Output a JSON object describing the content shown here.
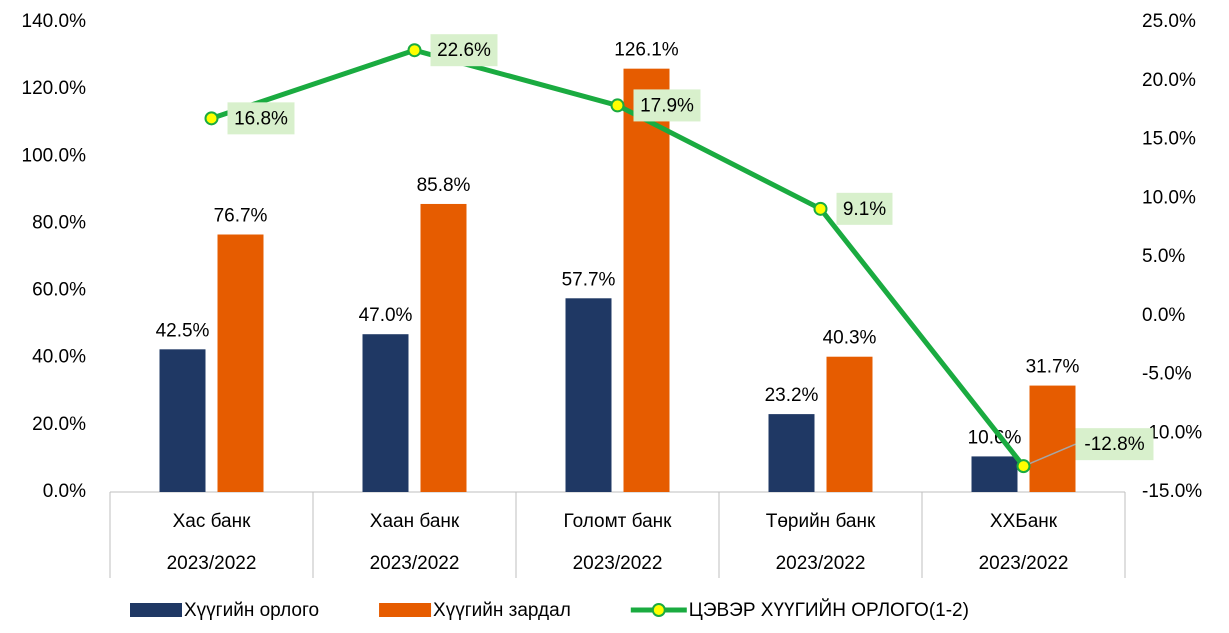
{
  "chart_data": {
    "type": "bar_line",
    "categories": [
      "Хас банк",
      "Хаан банк",
      "Голомт банк",
      "Төрийн банк",
      "ХХБанк"
    ],
    "period_labels": [
      "2023/2022",
      "2023/2022",
      "2023/2022",
      "2023/2022",
      "2023/2022"
    ],
    "series": [
      {
        "name": "Хүүгийн орлого",
        "type": "bar",
        "color": "#1f3864",
        "values": [
          42.5,
          47.0,
          57.7,
          23.2,
          10.6
        ],
        "value_labels": [
          "42.5%",
          "47.0%",
          "57.7%",
          "23.2%",
          "10.6%"
        ]
      },
      {
        "name": "Хүүгийн зардал",
        "type": "bar",
        "color": "#e65c00",
        "values": [
          76.7,
          85.8,
          126.1,
          40.3,
          31.7
        ],
        "value_labels": [
          "76.7%",
          "85.8%",
          "126.1%",
          "40.3%",
          "31.7%"
        ]
      },
      {
        "name": "ЦЭВЭР ХҮҮГИЙН ОРЛОГО(1-2)",
        "type": "line",
        "axis": "y2",
        "color": "#1aab40",
        "marker_color": "#ffff00",
        "label_background": "#d8f0cc",
        "values": [
          16.8,
          22.6,
          17.9,
          9.1,
          -12.8
        ],
        "value_labels": [
          "16.8%",
          "22.6%",
          "17.9%",
          "9.1%",
          "-12.8%"
        ]
      }
    ],
    "ylim": [
      0,
      140
    ],
    "yticks": [
      {
        "value": 0,
        "label": "0.0%"
      },
      {
        "value": 20,
        "label": "20.0%"
      },
      {
        "value": 40,
        "label": "40.0%"
      },
      {
        "value": 60,
        "label": "60.0%"
      },
      {
        "value": 80,
        "label": "80.0%"
      },
      {
        "value": 100,
        "label": "100.0%"
      },
      {
        "value": 120,
        "label": "120.0%"
      },
      {
        "value": 140,
        "label": "140.0%"
      }
    ],
    "y2lim": [
      -15,
      25
    ],
    "y2ticks": [
      {
        "value": -15,
        "label": "-15.0%"
      },
      {
        "value": -10,
        "label": "-10.0%"
      },
      {
        "value": -5,
        "label": "-5.0%"
      },
      {
        "value": 0,
        "label": "0.0%"
      },
      {
        "value": 5,
        "label": "5.0%"
      },
      {
        "value": 10,
        "label": "10.0%"
      },
      {
        "value": 15,
        "label": "15.0%"
      },
      {
        "value": 20,
        "label": "20.0%"
      },
      {
        "value": 25,
        "label": "25.0%"
      }
    ],
    "legend": "bottom"
  }
}
